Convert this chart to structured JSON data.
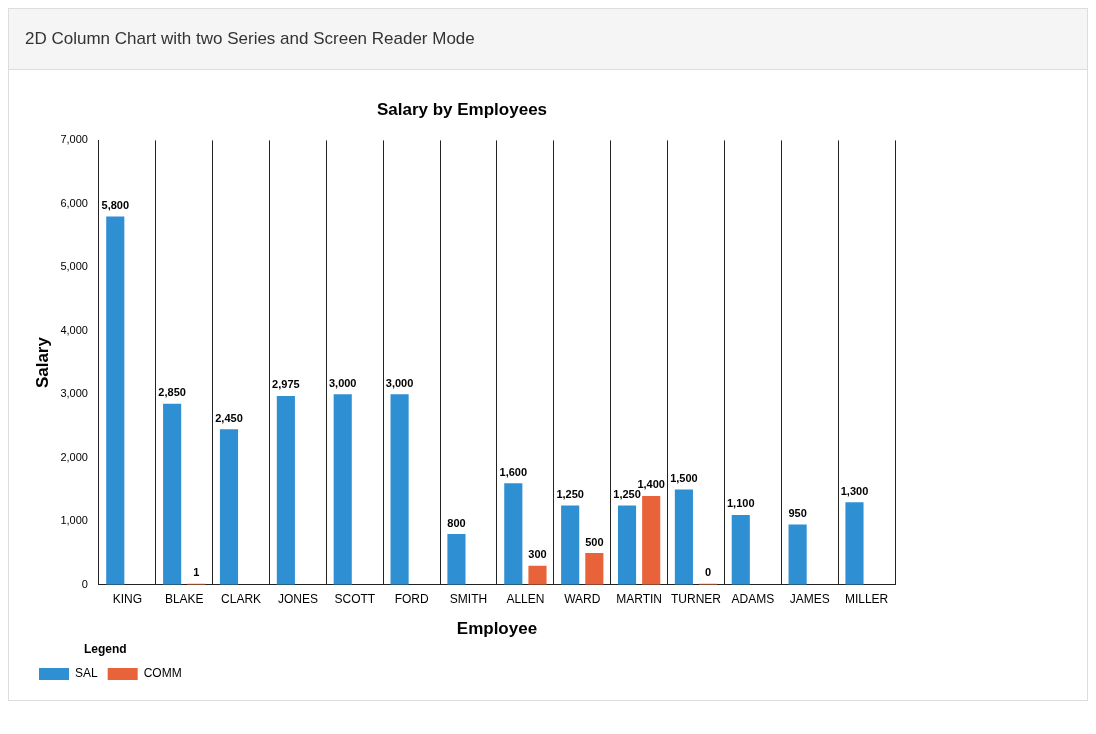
{
  "chart_data": {
    "type": "bar",
    "title": "Salary by Employees",
    "annotations": [
      "2D Column Chart with two Series and Screen Reader Mode"
    ],
    "xlabel": "Employee",
    "ylabel": "Salary",
    "legend_title": "Legend",
    "categories": [
      "KING",
      "BLAKE",
      "CLARK",
      "JONES",
      "SCOTT",
      "FORD",
      "SMITH",
      "ALLEN",
      "WARD",
      "MARTIN",
      "TURNER",
      "ADAMS",
      "JAMES",
      "MILLER"
    ],
    "series": [
      {
        "name": "SAL",
        "color": "#2e8fd3",
        "values": [
          5800,
          2850,
          2450,
          2975,
          3000,
          3000,
          800,
          1600,
          1250,
          1250,
          1500,
          1100,
          950,
          1300
        ],
        "value_labels": [
          "5,800",
          "2,850",
          "2,450",
          "2,975",
          "3,000",
          "3,000",
          "800",
          "1,600",
          "1,250",
          "1,250",
          "1,500",
          "1,100",
          "950",
          "1,300"
        ]
      },
      {
        "name": "COMM",
        "color": "#e8623a",
        "values": [
          null,
          1,
          null,
          null,
          null,
          null,
          null,
          300,
          500,
          1400,
          0,
          null,
          null,
          null
        ],
        "value_labels": [
          null,
          "1",
          null,
          null,
          null,
          null,
          null,
          "300",
          "500",
          "1,400",
          "0",
          null,
          null,
          null
        ]
      }
    ],
    "ylim": [
      0,
      7000
    ],
    "yticks": [
      {
        "value": 0,
        "label": "0"
      },
      {
        "value": 1000,
        "label": "1,000"
      },
      {
        "value": 2000,
        "label": "2,000"
      },
      {
        "value": 3000,
        "label": "3,000"
      },
      {
        "value": 4000,
        "label": "4,000"
      },
      {
        "value": 5000,
        "label": "5,000"
      },
      {
        "value": 6000,
        "label": "6,000"
      },
      {
        "value": 7000,
        "label": "7,000"
      }
    ],
    "grid": "x",
    "legend": "bottom left"
  }
}
